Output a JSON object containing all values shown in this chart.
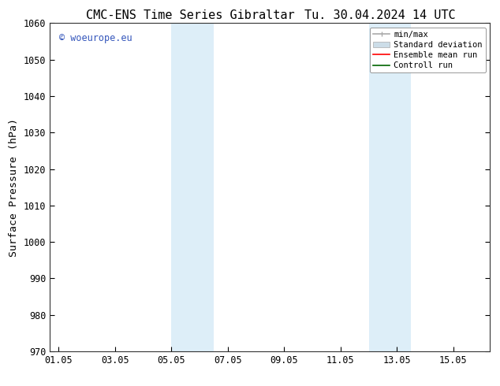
{
  "title_left": "CMC-ENS Time Series Gibraltar",
  "title_right": "Tu. 30.04.2024 14 UTC",
  "ylabel": "Surface Pressure (hPa)",
  "ylim": [
    970,
    1060
  ],
  "yticks": [
    970,
    980,
    990,
    1000,
    1010,
    1020,
    1030,
    1040,
    1050,
    1060
  ],
  "xtick_labels": [
    "01.05",
    "03.05",
    "05.05",
    "07.05",
    "09.05",
    "11.05",
    "13.05",
    "15.05"
  ],
  "xtick_positions": [
    0,
    2,
    4,
    6,
    8,
    10,
    12,
    14
  ],
  "xmin": -0.3,
  "xmax": 15.3,
  "shaded_regions": [
    {
      "xmin": 4.0,
      "xmax": 5.5,
      "color": "#ddeef8"
    },
    {
      "xmin": 11.0,
      "xmax": 12.5,
      "color": "#ddeef8"
    }
  ],
  "watermark_text": "© woeurope.eu",
  "watermark_color": "#3355bb",
  "legend_items": [
    {
      "label": "min/max",
      "color": "#aaaaaa"
    },
    {
      "label": "Standard deviation",
      "color": "#ccdde8"
    },
    {
      "label": "Ensemble mean run",
      "color": "red"
    },
    {
      "label": "Controll run",
      "color": "darkgreen"
    }
  ],
  "bg_color": "#ffffff",
  "title_fontsize": 11,
  "tick_fontsize": 8.5,
  "ylabel_fontsize": 9.5
}
